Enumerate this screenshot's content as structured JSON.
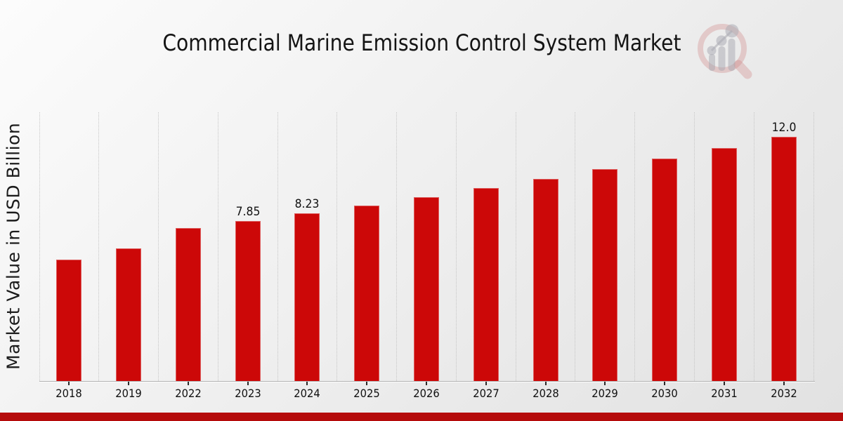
{
  "chart_data": {
    "type": "bar",
    "title": "Commercial Marine Emission Control System Market",
    "xlabel": "",
    "ylabel": "Market Value in USD Billion",
    "categories": [
      "2018",
      "2019",
      "2022",
      "2023",
      "2024",
      "2025",
      "2026",
      "2027",
      "2028",
      "2029",
      "2030",
      "2031",
      "2032"
    ],
    "values": [
      5.95,
      6.5,
      7.5,
      7.85,
      8.23,
      8.63,
      9.04,
      9.48,
      9.94,
      10.42,
      10.92,
      11.45,
      12.0
    ],
    "data_labels": {
      "2023": "7.85",
      "2024": "8.23",
      "2032": "12.0"
    },
    "ylim": [
      0,
      13.2
    ],
    "grid": "vertical-dotted",
    "legend": "none",
    "bar_color": "#cc0808",
    "label_color": "#111111",
    "gridline_color": "#c6c6c6",
    "axis_line_color": "#b2b2b2"
  },
  "branding": {
    "logo_icon": "magnifier-bar-chart-logo-icon",
    "accent_bar_color": "#b50b0b"
  }
}
